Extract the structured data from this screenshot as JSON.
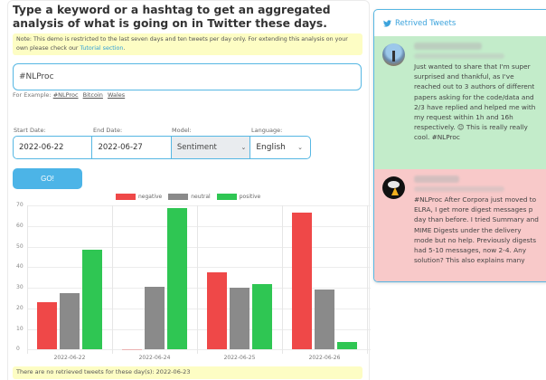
{
  "header": {
    "title": "Type a keyword or a hashtag to get an aggregated analysis of what is going on in Twitter these days.",
    "note_text": "Note: This demo is restricted to the last seven days and ten tweets per day only. For extending this analysis on your own please check our ",
    "note_link": "Tutorial section",
    "note_end": "."
  },
  "search": {
    "value": "#NLProc",
    "examples_label": "For Example:",
    "examples": [
      "#NLProc",
      "Bitcoin",
      "Wales"
    ]
  },
  "filters": {
    "start_label": "Start Date:",
    "start_value": "2022-06-22",
    "end_label": "End Date:",
    "end_value": "2022-06-27",
    "model_label": "Model:",
    "model_value": "Sentiment",
    "language_label": "Language:",
    "language_value": "English"
  },
  "go_button": "GO!",
  "colors": {
    "negative": "#ef4848",
    "neutral": "#8a8a8a",
    "positive": "#2fc653",
    "accent": "#4cb4e7",
    "note_bg": "#fdfdc4"
  },
  "chart_data": {
    "type": "bar",
    "title": "",
    "xlabel": "",
    "ylabel": "",
    "categories": [
      "2022-06-22",
      "2022-06-24",
      "2022-06-25",
      "2022-06-26"
    ],
    "series": [
      {
        "name": "negative",
        "values": [
          23,
          0.3,
          37.6,
          66.5
        ]
      },
      {
        "name": "neutral",
        "values": [
          27.5,
          30.3,
          30.2,
          29.3
        ]
      },
      {
        "name": "positive",
        "values": [
          48.6,
          68.8,
          31.8,
          3.5
        ]
      }
    ],
    "ylim": [
      0,
      70
    ],
    "yticks": [
      0,
      10,
      20,
      30,
      40,
      50,
      60,
      70
    ],
    "grid": true,
    "legend_position": "top"
  },
  "footer_note": "There are no retrieved tweets for these day(s): 2022-06-23",
  "tweets_panel": {
    "title": "Retrived Tweets",
    "tweets": [
      {
        "sentiment": "positive",
        "text": "Just wanted to share that I'm super surprised and thankful, as I've reached out to 3 authors of different papers asking for the code/data and 2/3 have replied and helped me with my request within 1h and 16h respectively. 😊 This is really really cool. #NLProc"
      },
      {
        "sentiment": "negative",
        "text": "#NLProc After Corpora just moved to ELRA, I get more digest messages p day than before. I tried Summary and MIME Digests under the delivery mode but no help. Previously digests had 5-10 messages, now 2-4. Any solution? This also explains many"
      }
    ]
  }
}
